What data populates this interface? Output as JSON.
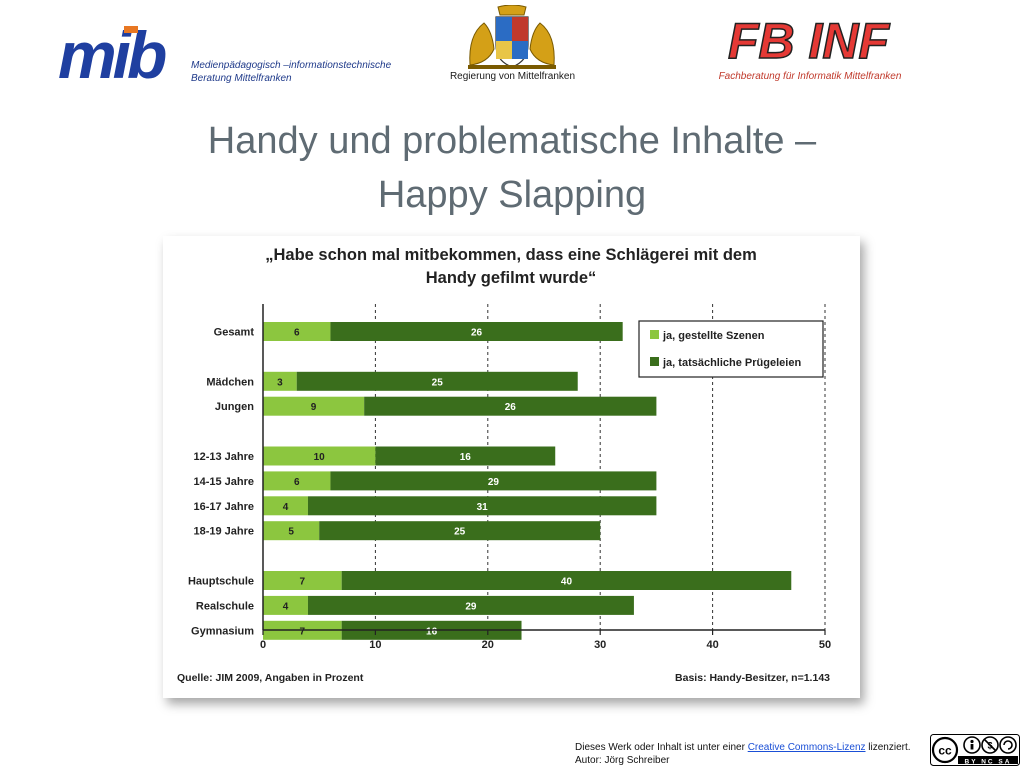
{
  "header": {
    "mib_logo_text": "mib",
    "mib_caption_line1": "Medienpädagogisch –informationstechnische",
    "mib_caption_line2": "Beratung Mittelfranken",
    "crest_caption": "Regierung von Mittelfranken",
    "fbinf_logo_text": "FB INF",
    "fbinf_caption": "Fachberatung für Informatik Mittelfranken"
  },
  "slide": {
    "title_line1": "Handy und problematische Inhalte –",
    "title_line2": "Happy Slapping"
  },
  "chart_data": {
    "type": "bar",
    "orientation": "horizontal",
    "stacked": true,
    "title_line1": "„Habe schon mal mitbekommen, dass eine Schlägerei mit dem",
    "title_line2": "Handy gefilmt wurde“",
    "categories": [
      "Gesamt",
      "Mädchen",
      "Jungen",
      "12-13 Jahre",
      "14-15 Jahre",
      "16-17 Jahre",
      "18-19 Jahre",
      "Hauptschule",
      "Realschule",
      "Gymnasium"
    ],
    "groups": [
      [
        0
      ],
      [
        1,
        2
      ],
      [
        3,
        4,
        5,
        6
      ],
      [
        7,
        8,
        9
      ]
    ],
    "series": [
      {
        "name": "ja, gestellte Szenen",
        "color": "#8cc63f",
        "values": [
          6,
          3,
          9,
          10,
          6,
          4,
          5,
          7,
          4,
          7
        ]
      },
      {
        "name": "ja, tatsächliche Prügeleien",
        "color": "#3a6e1c",
        "values": [
          26,
          25,
          26,
          16,
          29,
          31,
          25,
          40,
          29,
          16
        ]
      }
    ],
    "xlim": [
      0,
      50
    ],
    "xticks": [
      0,
      10,
      20,
      30,
      40,
      50
    ],
    "grid": "vertical dashed",
    "legend_position": "top-right",
    "source": "Quelle: JIM 2009, Angaben in Prozent",
    "basis": "Basis: Handy-Besitzer, n=1.143"
  },
  "footer": {
    "license_prefix": "Dieses Werk oder Inhalt ist unter einer",
    "license_link": "Creative Commons-Lizenz",
    "license_suffix": "lizenziert.",
    "author": "Autor: Jörg Schreiber",
    "cc_badge_text": "BY NC SA"
  }
}
